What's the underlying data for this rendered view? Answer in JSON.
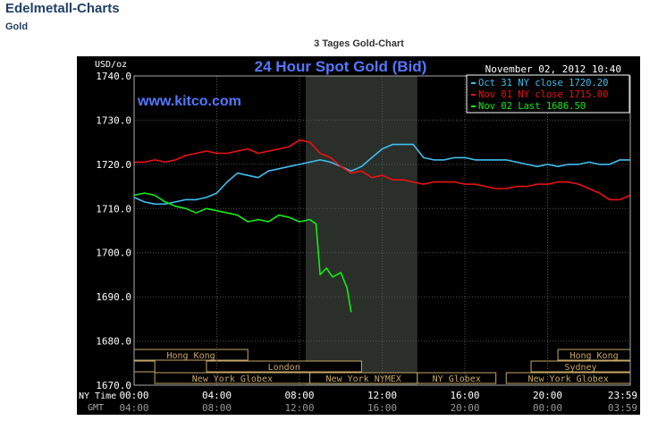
{
  "page": {
    "title": "Edelmetall-Charts",
    "subtitle": "Gold",
    "chart_caption": "3 Tages Gold-Chart"
  },
  "colors": {
    "oct31": "#3fbff0",
    "nov01": "#ee1111",
    "nov02": "#11ee11",
    "title": "#5577ff",
    "axis_text": "#ffffff",
    "session_border": "#c8a864"
  },
  "chart_data": {
    "type": "line",
    "title": "24 Hour Spot Gold (Bid)",
    "watermark": "www.kitco.com",
    "ylabel": "USD/oz",
    "date_label": "November 02, 2012 10:40",
    "ylim": [
      1670,
      1740
    ],
    "yticks": [
      "1740.0",
      "1730.0",
      "1720.0",
      "1710.0",
      "1700.0",
      "1690.0",
      "1680.0",
      "1670.0"
    ],
    "xlim": [
      0,
      24
    ],
    "xticks_ny": [
      "00:00",
      "04:00",
      "08:00",
      "12:00",
      "16:00",
      "20:00",
      "23:59"
    ],
    "xticks_gmt": [
      "04:00",
      "08:00",
      "12:00",
      "16:00",
      "20:00",
      "00:00",
      "03:59"
    ],
    "x_row_labels": {
      "ny": "NY Time",
      "gmt": "GMT"
    },
    "legend": [
      {
        "label": "Oct 31 NY close 1720.20",
        "color": "#3fbff0"
      },
      {
        "label": "Nov 01 NY close 1715.00",
        "color": "#ee1111"
      },
      {
        "label": "Nov 02 Last 1686.50",
        "color": "#11ee11"
      }
    ],
    "highlight_x": [
      8.3,
      13.7
    ],
    "sessions": [
      {
        "name": "Hong Kong",
        "start": 0,
        "end": 5.5,
        "row": 0
      },
      {
        "name": "",
        "start": 0,
        "end": 1.0,
        "row": 1
      },
      {
        "name": "London",
        "start": 3.5,
        "end": 11.0,
        "row": 1
      },
      {
        "name": "New York Globex",
        "start": 1.0,
        "end": 8.5,
        "row": 2
      },
      {
        "name": "New York NYMEX",
        "start": 8.5,
        "end": 13.7,
        "row": 2
      },
      {
        "name": "NY Globex",
        "start": 13.7,
        "end": 17.5,
        "row": 2
      },
      {
        "name": "Hong Kong",
        "start": 20.5,
        "end": 24,
        "row": 0
      },
      {
        "name": "Sydney",
        "start": 19.2,
        "end": 24,
        "row": 1
      },
      {
        "name": "New York Globex",
        "start": 18.0,
        "end": 24,
        "row": 2
      }
    ],
    "series": [
      {
        "name": "Oct 31 NY close 1720.20",
        "color": "#3fbff0",
        "x": [
          0,
          0.5,
          1,
          1.5,
          2,
          2.5,
          3,
          3.5,
          4,
          4.5,
          5,
          5.5,
          6,
          6.5,
          7,
          7.5,
          8,
          8.5,
          9,
          9.5,
          10,
          10.5,
          11,
          11.5,
          12,
          12.5,
          13,
          13.5,
          14,
          14.5,
          15,
          15.5,
          16,
          16.5,
          17,
          17.5,
          18,
          18.5,
          19,
          19.5,
          20,
          20.5,
          21,
          21.5,
          22,
          22.5,
          23,
          23.5,
          24
        ],
        "y": [
          1712.5,
          1711.5,
          1711.0,
          1711.0,
          1711.5,
          1712.0,
          1712.0,
          1712.5,
          1713.5,
          1716.0,
          1718.0,
          1717.5,
          1717.0,
          1718.5,
          1719.0,
          1719.5,
          1720.0,
          1720.5,
          1721.0,
          1720.5,
          1719.5,
          1718.5,
          1719.5,
          1721.5,
          1723.5,
          1724.5,
          1724.5,
          1724.5,
          1721.5,
          1721.0,
          1721.0,
          1721.5,
          1721.5,
          1721.0,
          1721.0,
          1721.0,
          1721.0,
          1720.5,
          1720.0,
          1719.5,
          1720.0,
          1719.5,
          1720.0,
          1720.0,
          1720.5,
          1720.0,
          1720.0,
          1721.0,
          1721.0
        ]
      },
      {
        "name": "Nov 01 NY close 1715.00",
        "color": "#ee1111",
        "x": [
          0,
          0.5,
          1,
          1.5,
          2,
          2.5,
          3,
          3.5,
          4,
          4.5,
          5,
          5.5,
          6,
          6.5,
          7,
          7.5,
          8,
          8.5,
          9,
          9.5,
          10,
          10.5,
          11,
          11.5,
          12,
          12.5,
          13,
          13.5,
          14,
          14.5,
          15,
          15.5,
          16,
          16.5,
          17,
          17.5,
          18,
          18.5,
          19,
          19.5,
          20,
          20.5,
          21,
          21.5,
          22,
          22.5,
          23,
          23.5,
          24
        ],
        "y": [
          1720.5,
          1720.5,
          1721.0,
          1720.5,
          1721.0,
          1722.0,
          1722.5,
          1723.0,
          1722.5,
          1722.5,
          1723.0,
          1723.5,
          1722.5,
          1723.0,
          1723.5,
          1724.0,
          1725.5,
          1725.0,
          1722.5,
          1721.5,
          1719.5,
          1718.0,
          1718.5,
          1717.0,
          1717.5,
          1716.5,
          1716.5,
          1716.0,
          1715.5,
          1716.0,
          1716.0,
          1716.0,
          1715.5,
          1715.5,
          1715.0,
          1714.5,
          1714.5,
          1715.0,
          1715.0,
          1715.5,
          1715.5,
          1716.0,
          1716.0,
          1715.5,
          1714.5,
          1713.5,
          1712.0,
          1712.0,
          1713.0
        ]
      },
      {
        "name": "Nov 02 Last 1686.50",
        "color": "#11ee11",
        "x": [
          0,
          0.5,
          1,
          1.5,
          2,
          2.5,
          3,
          3.5,
          4,
          4.5,
          5,
          5.5,
          6,
          6.5,
          7,
          7.5,
          8,
          8.5,
          8.8,
          9.0,
          9.3,
          9.6,
          10.0,
          10.3,
          10.5
        ],
        "y": [
          1713.0,
          1713.5,
          1713.0,
          1711.5,
          1710.5,
          1710.0,
          1709.0,
          1710.0,
          1709.5,
          1709.0,
          1708.5,
          1707.0,
          1707.5,
          1707.0,
          1708.5,
          1708.0,
          1707.0,
          1707.5,
          1706.5,
          1695.0,
          1696.5,
          1694.5,
          1695.5,
          1692.0,
          1686.5
        ]
      }
    ]
  }
}
